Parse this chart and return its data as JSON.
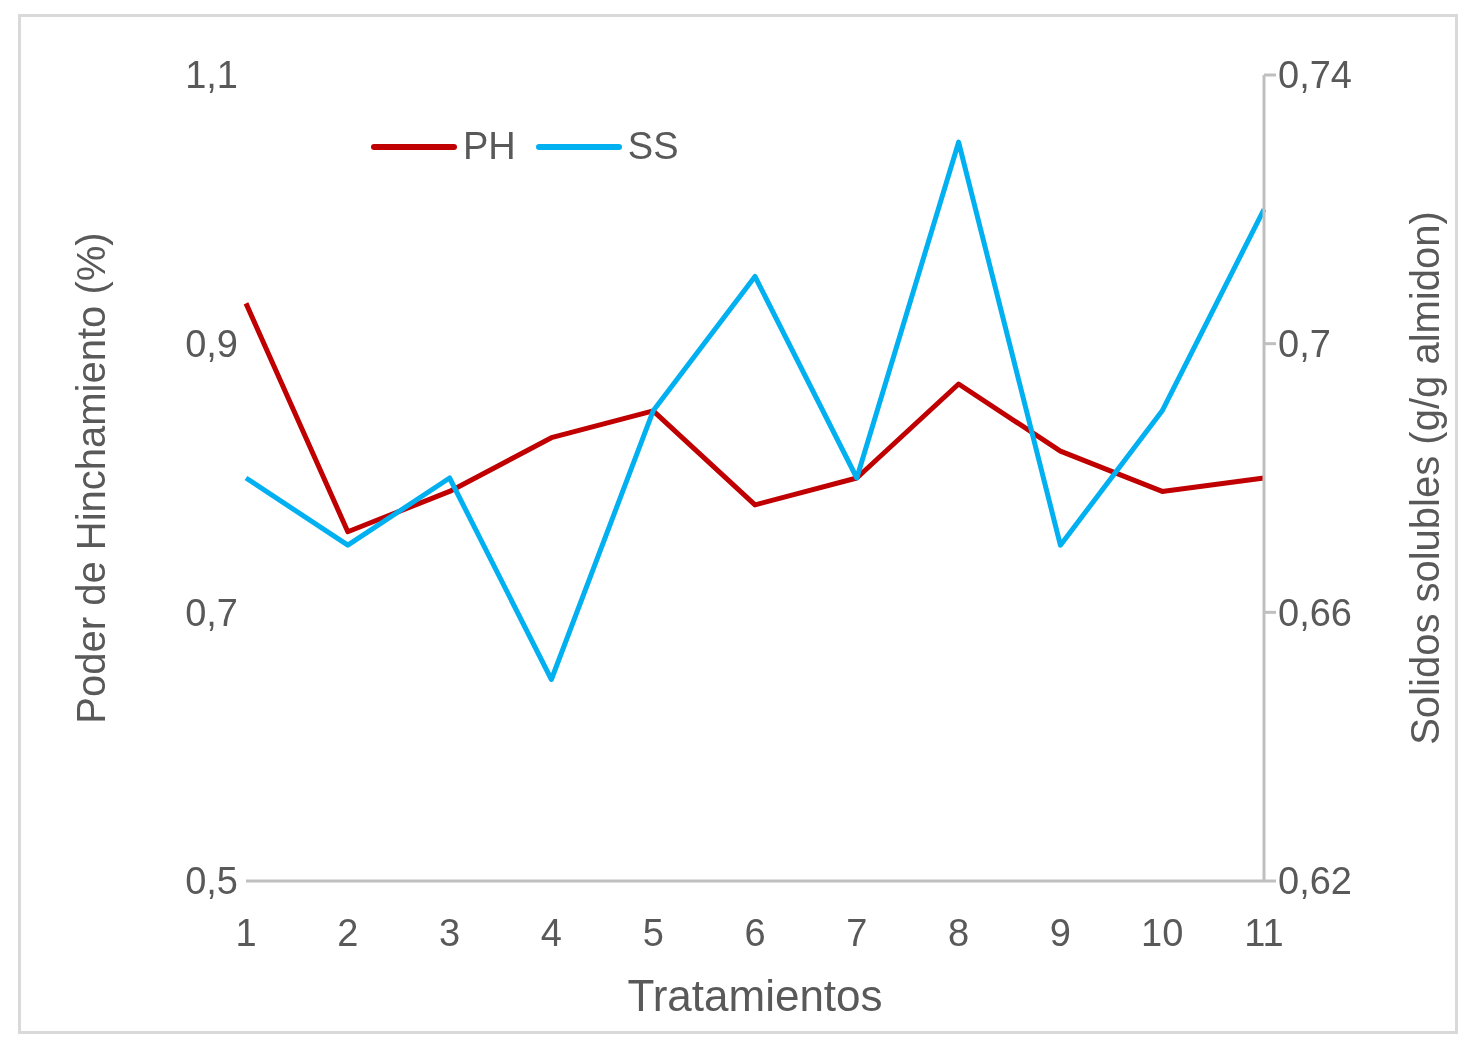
{
  "chart_data": {
    "type": "line",
    "xlabel": "Tratamientos",
    "ylabel": "Poder de Hinchamiento (%)",
    "y2label": "Solidos solubles (g/g almidon)",
    "categories": [
      "1",
      "2",
      "3",
      "4",
      "5",
      "6",
      "7",
      "8",
      "9",
      "10",
      "11"
    ],
    "series": [
      {
        "name": "PH",
        "color": "#c00000",
        "values": [
          0.93,
          0.76,
          0.79,
          0.83,
          0.85,
          0.78,
          0.8,
          0.87,
          0.82,
          0.79,
          0.8
        ]
      },
      {
        "name": "SS",
        "color": "#00b0f0",
        "axis": "y2",
        "values": [
          0.68,
          0.67,
          0.68,
          0.65,
          0.69,
          0.71,
          0.68,
          0.73,
          0.67,
          0.69,
          0.72
        ]
      }
    ],
    "ylim": [
      0.5,
      1.1
    ],
    "yticks": [
      {
        "value": 0.5,
        "label": "0,5"
      },
      {
        "value": 0.7,
        "label": "0,7"
      },
      {
        "value": 0.9,
        "label": "0,9"
      },
      {
        "value": 1.1,
        "label": "1,1"
      }
    ],
    "y2lim": [
      0.62,
      0.74
    ],
    "y2ticks": [
      {
        "value": 0.62,
        "label": "0,62"
      },
      {
        "value": 0.66,
        "label": "0,66"
      },
      {
        "value": 0.7,
        "label": "0,7"
      },
      {
        "value": 0.74,
        "label": "0,74"
      }
    ],
    "grid": false,
    "legend": "top left",
    "marker": "none",
    "line_style": "solid"
  }
}
